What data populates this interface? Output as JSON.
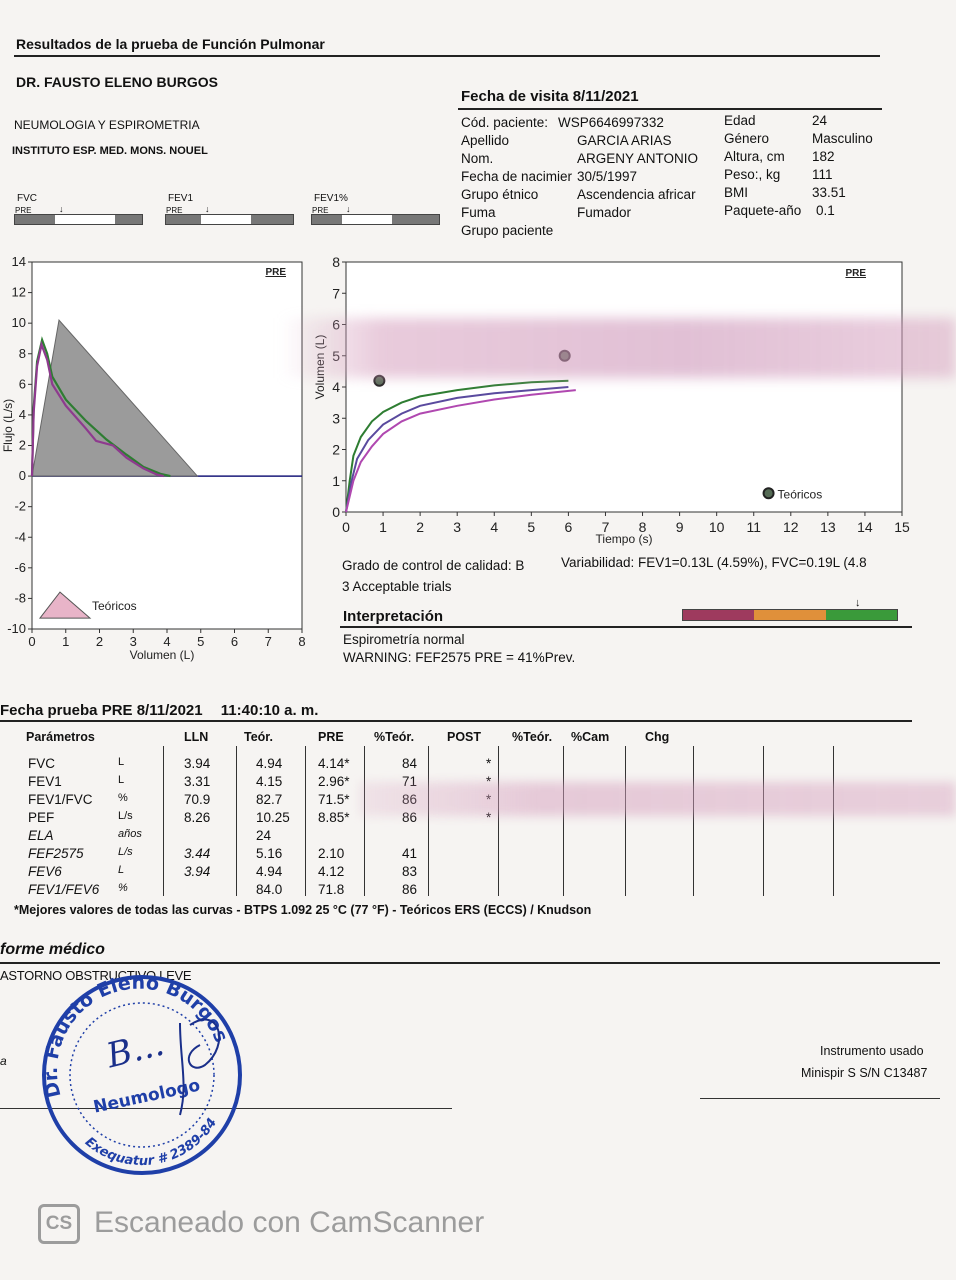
{
  "report": {
    "title": "Resultados de la prueba de Función Pulmonar",
    "doctor": "DR. FAUSTO ELENO BURGOS",
    "specialty": "NEUMOLOGIA Y ESPIROMETRIA",
    "institute": "INSTITUTO ESP. MED. MONS. NOUEL",
    "visit_date": "Fecha de visita 8/11/2021"
  },
  "patient": {
    "labels": [
      "Cód. paciente:",
      "Apellido",
      "Nom.",
      "Fecha de nacimier",
      "Grupo étnico",
      "Fuma",
      "Grupo paciente"
    ],
    "values": [
      "WSP6646997332",
      "GARCIA ARIAS",
      "ARGENY ANTONIO",
      "30/5/1997",
      "Ascendencia africar",
      "Fumador",
      ""
    ],
    "right_labels": [
      "Edad",
      "Género",
      "Altura, cm",
      "Peso:, kg",
      "BMI",
      "Paquete-año"
    ],
    "right_values": [
      "24",
      "Masculino",
      "182",
      "111",
      "33.51",
      "0.1"
    ]
  },
  "mini_bars": [
    {
      "name": "FVC",
      "pre": "PRE",
      "marker": "↓"
    },
    {
      "name": "FEV1",
      "pre": "PRE",
      "marker": "↓"
    },
    {
      "name": "FEV1%",
      "pre": "PRE",
      "marker": "↓"
    }
  ],
  "chart_data": [
    {
      "type": "line",
      "title": "",
      "badge": "PRE",
      "xlabel": "Volumen (L)",
      "ylabel": "Flujo (L/s)",
      "xlim": [
        0,
        8
      ],
      "ylim": [
        -10,
        14
      ],
      "xticks": [
        "0",
        "1",
        "2",
        "3",
        "4",
        "5",
        "6",
        "7",
        "8"
      ],
      "yticks": [
        "14",
        "12",
        "10",
        "8",
        "6",
        "4",
        "2",
        "0",
        "-2",
        "-4",
        "-6",
        "-8",
        "-10"
      ],
      "legend": "Teóricos",
      "theoretical_triangle": [
        [
          0,
          0
        ],
        [
          0.8,
          10.2
        ],
        [
          4.9,
          0
        ]
      ],
      "series": [
        {
          "color": "#2e7d32",
          "points": [
            [
              0,
              0
            ],
            [
              0.05,
              4.5
            ],
            [
              0.15,
              7.5
            ],
            [
              0.3,
              8.9
            ],
            [
              0.45,
              8
            ],
            [
              0.6,
              6.5
            ],
            [
              1.0,
              5
            ],
            [
              1.6,
              3.6
            ],
            [
              2.2,
              2.4
            ],
            [
              2.8,
              1.4
            ],
            [
              3.3,
              0.6
            ],
            [
              3.8,
              0.15
            ],
            [
              4.1,
              0
            ]
          ]
        },
        {
          "color": "#8e3a8e",
          "points": [
            [
              0,
              0
            ],
            [
              0.05,
              4.2
            ],
            [
              0.15,
              7.2
            ],
            [
              0.28,
              8.6
            ],
            [
              0.45,
              7.6
            ],
            [
              0.6,
              6
            ],
            [
              1.0,
              4.6
            ],
            [
              1.6,
              3.1
            ],
            [
              1.9,
              2.3
            ],
            [
              2.4,
              2.0
            ],
            [
              2.8,
              1.2
            ],
            [
              3.3,
              0.5
            ],
            [
              3.7,
              0.1
            ],
            [
              3.9,
              0
            ]
          ]
        }
      ]
    },
    {
      "type": "line",
      "title": "",
      "badge": "PRE",
      "xlabel": "Tiempo (s)",
      "ylabel": "Volumen (L)",
      "xlim": [
        0,
        15
      ],
      "ylim": [
        0,
        8
      ],
      "xticks": [
        "0",
        "1",
        "2",
        "3",
        "4",
        "5",
        "6",
        "7",
        "8",
        "9",
        "10",
        "11",
        "12",
        "13",
        "14",
        "15"
      ],
      "yticks": [
        "8",
        "7",
        "6",
        "5",
        "4",
        "3",
        "2",
        "1",
        "0"
      ],
      "legend": "Teóricos",
      "theoretical_points": [
        [
          0.9,
          4.2
        ],
        [
          5.9,
          5.0
        ]
      ],
      "series": [
        {
          "color": "#2e7d32",
          "points": [
            [
              0,
              0
            ],
            [
              0.1,
              1.0
            ],
            [
              0.2,
              1.8
            ],
            [
              0.4,
              2.4
            ],
            [
              0.7,
              2.9
            ],
            [
              1,
              3.2
            ],
            [
              1.5,
              3.5
            ],
            [
              2,
              3.7
            ],
            [
              3,
              3.9
            ],
            [
              4,
              4.05
            ],
            [
              5,
              4.15
            ],
            [
              6,
              4.2
            ]
          ]
        },
        {
          "color": "#5a4a9e",
          "points": [
            [
              0,
              0
            ],
            [
              0.15,
              1.0
            ],
            [
              0.3,
              1.7
            ],
            [
              0.6,
              2.3
            ],
            [
              1,
              2.8
            ],
            [
              1.5,
              3.15
            ],
            [
              2,
              3.4
            ],
            [
              3,
              3.65
            ],
            [
              4,
              3.8
            ],
            [
              5,
              3.9
            ],
            [
              6,
              4.0
            ]
          ]
        },
        {
          "color": "#b048b0",
          "points": [
            [
              0,
              0
            ],
            [
              0.2,
              1.0
            ],
            [
              0.4,
              1.6
            ],
            [
              0.7,
              2.1
            ],
            [
              1,
              2.5
            ],
            [
              1.5,
              2.9
            ],
            [
              2,
              3.15
            ],
            [
              3,
              3.4
            ],
            [
              4,
              3.6
            ],
            [
              5,
              3.75
            ],
            [
              6.2,
              3.9
            ]
          ]
        }
      ]
    }
  ],
  "quality": {
    "grade": "Grado de control de calidad: B",
    "variability": "Variabilidad: FEV1=0.13L (4.59%), FVC=0.19L (4.8",
    "trials": "3 Acceptable trials"
  },
  "interpretation": {
    "heading": "Interpretación",
    "line1": "Espirometría normal",
    "line2": "WARNING: FEF2575 PRE = 41%Prev.",
    "scale_colors": [
      "#9e3a5e",
      "#e0903a",
      "#3a9a3a"
    ],
    "marker": "↓"
  },
  "test": {
    "heading": "Fecha prueba PRE 8/11/2021",
    "time": "11:40:10 a. m.",
    "columns": [
      "Parámetros",
      "",
      "LLN",
      "Teór.",
      "PRE",
      "%Teór.",
      "POST",
      "%Teór.",
      "%Cam",
      "Chg"
    ],
    "rows": [
      [
        "FVC",
        "L",
        "3.94",
        "4.94",
        "4.14*",
        "84",
        "*"
      ],
      [
        "FEV1",
        "L",
        "3.31",
        "4.15",
        "2.96*",
        "71",
        "*"
      ],
      [
        "FEV1/FVC",
        "%",
        "70.9",
        "82.7",
        "71.5*",
        "86",
        "*"
      ],
      [
        "PEF",
        "L/s",
        "8.26",
        "10.25",
        "8.85*",
        "86",
        "*"
      ],
      [
        "ELA",
        "años",
        "",
        "24",
        "",
        "",
        ""
      ],
      [
        "FEF2575",
        "L/s",
        "3.44",
        "5.16",
        "2.10",
        "41",
        ""
      ],
      [
        "FEV6",
        "L",
        "3.94",
        "4.94",
        "4.12",
        "83",
        ""
      ],
      [
        "FEV1/FEV6",
        "%",
        "",
        "84.0",
        "71.8",
        "86",
        ""
      ]
    ],
    "footnote": "*Mejores valores de todas las curvas - BTPS 1.092 25 °C (77 °F) - Teóricos ERS (ECCS) / Knudson"
  },
  "medical": {
    "heading": "forme médico",
    "diagnosis": "ASTORNO OBSTRUCTIVO LEVE",
    "left_mark": "a",
    "stamp_name": "Dr. Fausto Eleno Burgos",
    "stamp_role": "Neumologo",
    "stamp_number": "Exequatur # 2389-84",
    "signature": "B..."
  },
  "instrument": {
    "label": "Instrumento usado",
    "value": "Minispir S S/N C13487"
  },
  "watermark": {
    "logo": "CS",
    "text": "Escaneado con CamScanner"
  }
}
